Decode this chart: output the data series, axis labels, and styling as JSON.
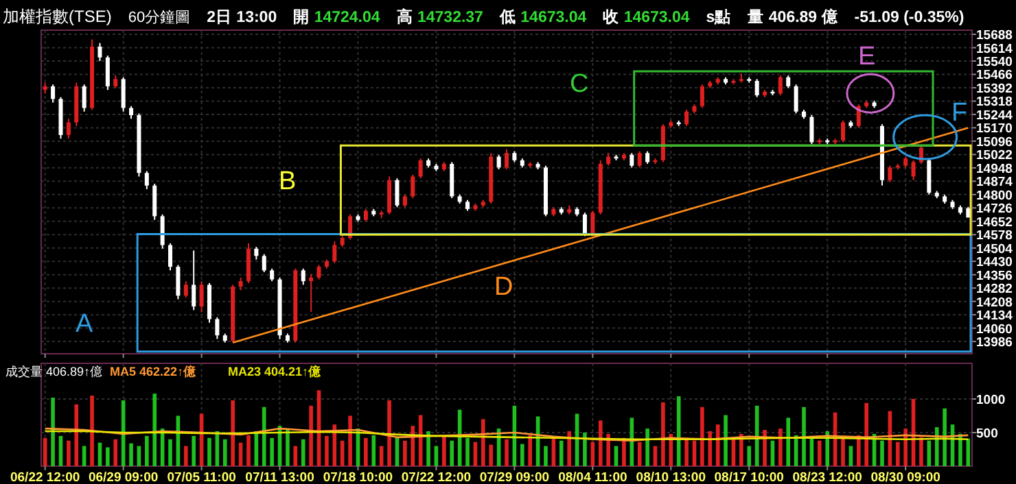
{
  "chart_data": [
    {
      "type": "candlestick",
      "title": "加權指數(TSE)",
      "subtitle": "60分鐘圖",
      "annotations": [
        "2日 13:00",
        "開 14724.04",
        "高 14732.37",
        "低 14673.04",
        "收 14673.04",
        "s點",
        "量 406.89 億",
        "-51.09 (-0.35%)",
        "A",
        "B",
        "C",
        "E",
        "F"
      ],
      "categories": [
        null,
        null,
        null,
        null,
        null,
        null,
        null,
        null,
        null,
        null,
        null,
        null,
        null,
        null,
        null,
        null,
        null,
        null,
        null,
        null,
        null,
        null,
        null,
        null,
        null,
        null,
        null,
        null,
        null,
        null,
        null,
        null,
        null,
        null,
        null,
        null,
        null,
        null,
        null,
        null,
        null,
        null,
        null,
        null,
        null,
        null,
        null,
        null,
        null,
        null,
        null,
        null,
        null,
        null,
        null,
        null,
        null,
        null,
        null,
        null,
        null,
        null,
        null,
        null,
        null,
        null,
        null,
        null,
        null,
        null,
        null,
        null,
        null,
        null,
        null,
        null,
        null,
        null,
        null,
        null,
        null,
        null,
        null,
        null,
        null,
        null,
        null,
        null,
        null,
        null,
        null,
        null,
        null,
        null,
        null,
        null,
        null,
        null,
        null,
        null,
        null,
        null,
        null,
        null,
        null,
        null,
        null,
        null,
        null,
        null,
        null,
        null,
        null,
        null,
        null,
        null,
        null,
        null,
        null
      ],
      "ohlc": [
        [
          15380,
          15420,
          15360,
          15400
        ],
        [
          15400,
          15410,
          15310,
          15330
        ],
        [
          15330,
          15340,
          15110,
          15130
        ],
        [
          15130,
          15220,
          15110,
          15200
        ],
        [
          15200,
          15420,
          15180,
          15400
        ],
        [
          15400,
          15410,
          15260,
          15280
        ],
        [
          15280,
          15660,
          15270,
          15620
        ],
        [
          15620,
          15640,
          15540,
          15560
        ],
        [
          15560,
          15570,
          15380,
          15400
        ],
        [
          15400,
          15460,
          15390,
          15440
        ],
        [
          15440,
          15450,
          15260,
          15280
        ],
        [
          15280,
          15290,
          15220,
          15240
        ],
        [
          15240,
          15250,
          14900,
          14920
        ],
        [
          14920,
          14930,
          14830,
          14850
        ],
        [
          14850,
          14860,
          14660,
          14680
        ],
        [
          14680,
          14690,
          14500,
          14520
        ],
        [
          14520,
          14530,
          14380,
          14400
        ],
        [
          14400,
          14410,
          14220,
          14240
        ],
        [
          14240,
          14320,
          14230,
          14300
        ],
        [
          14300,
          14490,
          14160,
          14180
        ],
        [
          14180,
          14320,
          14150,
          14300
        ],
        [
          14300,
          14310,
          14090,
          14110
        ],
        [
          14110,
          14120,
          14000,
          14020
        ],
        [
          14020,
          14030,
          13980,
          13990
        ],
        [
          13990,
          14300,
          13980,
          14290
        ],
        [
          14290,
          14340,
          14270,
          14320
        ],
        [
          14320,
          14530,
          14310,
          14500
        ],
        [
          14500,
          14510,
          14440,
          14460
        ],
        [
          14460,
          14470,
          14370,
          14380
        ],
        [
          14380,
          14390,
          14320,
          14330
        ],
        [
          14330,
          14340,
          14000,
          14020
        ],
        [
          14020,
          14030,
          13980,
          13990
        ],
        [
          13990,
          14390,
          13980,
          14380
        ],
        [
          14380,
          14390,
          14300,
          14320
        ],
        [
          14320,
          14360,
          14150,
          14340
        ],
        [
          14340,
          14410,
          14330,
          14400
        ],
        [
          14400,
          14440,
          14390,
          14430
        ],
        [
          14430,
          14540,
          14420,
          14520
        ],
        [
          14520,
          14570,
          14510,
          14560
        ],
        [
          14560,
          14690,
          14550,
          14680
        ],
        [
          14680,
          14690,
          14650,
          14660
        ],
        [
          14660,
          14720,
          14650,
          14710
        ],
        [
          14710,
          14720,
          14680,
          14690
        ],
        [
          14690,
          14710,
          14670,
          14700
        ],
        [
          14700,
          14900,
          14690,
          14880
        ],
        [
          14880,
          14890,
          14730,
          14740
        ],
        [
          14740,
          14800,
          14730,
          14790
        ],
        [
          14790,
          14910,
          14780,
          14900
        ],
        [
          14900,
          15000,
          14890,
          14990
        ],
        [
          14990,
          15000,
          14950,
          14960
        ],
        [
          14960,
          14970,
          14930,
          14940
        ],
        [
          14940,
          14980,
          14930,
          14970
        ],
        [
          14970,
          14980,
          14780,
          14790
        ],
        [
          14790,
          14800,
          14750,
          14760
        ],
        [
          14760,
          14770,
          14710,
          14720
        ],
        [
          14720,
          14750,
          14710,
          14740
        ],
        [
          14740,
          14770,
          14730,
          14760
        ],
        [
          14760,
          15030,
          14750,
          15010
        ],
        [
          15010,
          15020,
          14940,
          14950
        ],
        [
          14950,
          15050,
          14940,
          15030
        ],
        [
          15030,
          15040,
          14980,
          14990
        ],
        [
          14990,
          15000,
          14950,
          14960
        ],
        [
          14960,
          14980,
          14950,
          14970
        ],
        [
          14970,
          14980,
          14940,
          14950
        ],
        [
          14950,
          14960,
          14680,
          14690
        ],
        [
          14690,
          14730,
          14680,
          14720
        ],
        [
          14720,
          14730,
          14690,
          14700
        ],
        [
          14700,
          14740,
          14690,
          14720
        ],
        [
          14720,
          14730,
          14680,
          14690
        ],
        [
          14690,
          14700,
          14570,
          14580
        ],
        [
          14580,
          14710,
          14570,
          14700
        ],
        [
          14700,
          14990,
          14690,
          14970
        ],
        [
          14970,
          15030,
          14960,
          15010
        ],
        [
          15010,
          15020,
          14990,
          15000
        ],
        [
          15000,
          15030,
          14990,
          15020
        ],
        [
          15020,
          15030,
          14950,
          14960
        ],
        [
          14960,
          15040,
          14950,
          15030
        ],
        [
          15030,
          15040,
          14970,
          14980
        ],
        [
          14980,
          15000,
          14970,
          14990
        ],
        [
          14990,
          15190,
          14980,
          15180
        ],
        [
          15180,
          15210,
          15170,
          15200
        ],
        [
          15200,
          15210,
          15180,
          15190
        ],
        [
          15190,
          15270,
          15180,
          15260
        ],
        [
          15260,
          15300,
          15250,
          15290
        ],
        [
          15290,
          15410,
          15280,
          15400
        ],
        [
          15400,
          15430,
          15390,
          15420
        ],
        [
          15420,
          15450,
          15410,
          15440
        ],
        [
          15440,
          15450,
          15410,
          15420
        ],
        [
          15420,
          15440,
          15410,
          15430
        ],
        [
          15430,
          15470,
          15420,
          15440
        ],
        [
          15440,
          15450,
          15420,
          15430
        ],
        [
          15430,
          15440,
          15340,
          15350
        ],
        [
          15350,
          15380,
          15340,
          15370
        ],
        [
          15370,
          15380,
          15350,
          15360
        ],
        [
          15360,
          15460,
          15350,
          15450
        ],
        [
          15450,
          15460,
          15390,
          15400
        ],
        [
          15400,
          15410,
          15250,
          15260
        ],
        [
          15260,
          15270,
          15220,
          15230
        ],
        [
          15230,
          15240,
          15080,
          15090
        ],
        [
          15090,
          15110,
          15080,
          15100
        ],
        [
          15100,
          15110,
          15080,
          15090
        ],
        [
          15090,
          15110,
          15080,
          15100
        ],
        [
          15100,
          15210,
          15090,
          15200
        ],
        [
          15200,
          15210,
          15170,
          15180
        ],
        [
          15180,
          15300,
          15170,
          15290
        ],
        [
          15290,
          15320,
          15280,
          15310
        ],
        [
          15310,
          15320,
          15280,
          15290
        ],
        [
          15180,
          15190,
          14850,
          14880
        ],
        [
          14880,
          14960,
          14870,
          14950
        ],
        [
          14950,
          14970,
          14940,
          14960
        ],
        [
          14960,
          15010,
          14950,
          15000
        ],
        [
          14900,
          14990,
          14880,
          14980
        ],
        [
          14980,
          15070,
          14970,
          15060
        ],
        [
          14990,
          15000,
          14800,
          14810
        ],
        [
          14810,
          14820,
          14780,
          14790
        ],
        [
          14790,
          14800,
          14750,
          14760
        ],
        [
          14760,
          14770,
          14720,
          14730
        ],
        [
          14730,
          14740,
          14690,
          14700
        ],
        [
          14724,
          14732,
          14673,
          14673
        ]
      ],
      "series": [
        {
          "type": "line",
          "name": "D",
          "color": "#ff8c1a",
          "values": [
            null,
            null,
            null,
            null,
            null,
            null,
            null,
            null,
            null,
            null,
            null,
            null,
            null,
            null,
            null,
            null,
            null,
            null,
            null,
            null,
            null,
            null,
            null,
            null,
            13980,
            null,
            null,
            null,
            null,
            null,
            null,
            null,
            null,
            null,
            null,
            null,
            null,
            null,
            null,
            null,
            null,
            null,
            null,
            null,
            null,
            null,
            null,
            null,
            null,
            null,
            null,
            null,
            null,
            null,
            null,
            null,
            null,
            null,
            null,
            null,
            null,
            null,
            null,
            null,
            null,
            null,
            null,
            null,
            null,
            null,
            null,
            null,
            null,
            null,
            null,
            null,
            null,
            null,
            null,
            null,
            null,
            null,
            null,
            null,
            null,
            null,
            null,
            null,
            null,
            null,
            null,
            null,
            null,
            null,
            null,
            null,
            null,
            null,
            null,
            null,
            null,
            null,
            null,
            null,
            null,
            null,
            null,
            null,
            null,
            null,
            null,
            null,
            null,
            null,
            null,
            null,
            null,
            null,
            15170
          ]
        }
      ],
      "ylim": [
        13918,
        15711
      ],
      "yticks": [
        13986,
        14060,
        14134,
        14208,
        14282,
        14356,
        14430,
        14504,
        14578,
        14652,
        14726,
        14800,
        14874,
        14948,
        15022,
        15096,
        15170,
        15244,
        15318,
        15392,
        15466,
        15540,
        15614,
        15688
      ],
      "grid": true,
      "tick_labels": "y"
    },
    {
      "type": "bar",
      "title": "成交量 406.89↑億",
      "categories": [
        "06/22 12:00",
        null,
        null,
        null,
        null,
        null,
        null,
        null,
        null,
        null,
        "06/29 09:00",
        null,
        null,
        null,
        null,
        null,
        null,
        null,
        null,
        null,
        "07/05 11:00",
        null,
        null,
        null,
        null,
        null,
        null,
        null,
        null,
        null,
        "07/11 13:00",
        null,
        null,
        null,
        null,
        null,
        null,
        null,
        null,
        null,
        "07/18 10:00",
        null,
        null,
        null,
        null,
        null,
        null,
        null,
        null,
        null,
        "07/22 12:00",
        null,
        null,
        null,
        null,
        null,
        null,
        null,
        null,
        null,
        "07/29 09:00",
        null,
        null,
        null,
        null,
        null,
        null,
        null,
        null,
        null,
        "08/04 11:00",
        null,
        null,
        null,
        null,
        null,
        null,
        null,
        null,
        null,
        "08/10 13:00",
        null,
        null,
        null,
        null,
        null,
        null,
        null,
        null,
        null,
        "08/17 10:00",
        null,
        null,
        null,
        null,
        null,
        null,
        null,
        null,
        null,
        "08/23 12:00",
        null,
        null,
        null,
        null,
        null,
        null,
        null,
        null,
        null,
        "08/30 09:00",
        null,
        null,
        null,
        null,
        null,
        null,
        null,
        null
      ],
      "series": [
        {
          "type": "bar",
          "values": [
            420,
            1020,
            450,
            380,
            920,
            300,
            1050,
            350,
            280,
            400,
            980,
            340,
            300,
            450,
            1080,
            560,
            400,
            750,
            300,
            450,
            780,
            420,
            520,
            400,
            980,
            350,
            460,
            520,
            880,
            420,
            600,
            540,
            300,
            400,
            900,
            1130,
            450,
            620,
            380,
            750,
            560,
            420,
            460,
            300,
            980,
            420,
            380,
            600,
            760,
            520,
            300,
            450,
            380,
            840,
            420,
            360,
            700,
            320,
            560,
            400,
            900,
            330,
            460,
            740,
            300,
            420,
            380,
            520,
            780,
            500,
            360,
            680,
            480,
            300,
            420,
            720,
            360,
            560,
            300,
            950,
            480,
            1040,
            420,
            380,
            880,
            520,
            620,
            760,
            420,
            480,
            300,
            900,
            540,
            380,
            560,
            720,
            460,
            880,
            420,
            380,
            520,
            800,
            420,
            300,
            460,
            940,
            480,
            380,
            820,
            360,
            560,
            1000,
            430,
            380,
            580,
            860,
            620,
            480,
            410
          ],
          "colors": [
            "#e02020",
            "#20c020",
            "#20c020",
            "#e02020",
            "#e02020",
            "#20c020",
            "#e02020",
            "#20c020",
            "#20c020",
            "#e02020",
            "#20c020",
            "#20c020",
            "#20c020",
            "#20c020",
            "#20c020",
            "#20c020",
            "#20c020",
            "#20c020",
            "#e02020",
            "#20c020",
            "#e02020",
            "#20c020",
            "#20c020",
            "#20c020",
            "#e02020",
            "#e02020",
            "#e02020",
            "#20c020",
            "#20c020",
            "#20c020",
            "#20c020",
            "#20c020",
            "#e02020",
            "#20c020",
            "#e02020",
            "#e02020",
            "#e02020",
            "#e02020",
            "#e02020",
            "#e02020",
            "#20c020",
            "#e02020",
            "#20c020",
            "#e02020",
            "#e02020",
            "#20c020",
            "#e02020",
            "#e02020",
            "#e02020",
            "#20c020",
            "#20c020",
            "#e02020",
            "#20c020",
            "#20c020",
            "#20c020",
            "#e02020",
            "#e02020",
            "#e02020",
            "#20c020",
            "#e02020",
            "#20c020",
            "#20c020",
            "#e02020",
            "#20c020",
            "#20c020",
            "#e02020",
            "#20c020",
            "#e02020",
            "#20c020",
            "#20c020",
            "#e02020",
            "#e02020",
            "#e02020",
            "#20c020",
            "#e02020",
            "#20c020",
            "#e02020",
            "#20c020",
            "#e02020",
            "#e02020",
            "#e02020",
            "#20c020",
            "#e02020",
            "#e02020",
            "#e02020",
            "#e02020",
            "#e02020",
            "#20c020",
            "#e02020",
            "#e02020",
            "#20c020",
            "#20c020",
            "#e02020",
            "#20c020",
            "#e02020",
            "#20c020",
            "#20c020",
            "#20c020",
            "#20c020",
            "#e02020",
            "#20c020",
            "#e02020",
            "#e02020",
            "#20c020",
            "#e02020",
            "#e02020",
            "#20c020",
            "#20c020",
            "#e02020",
            "#e02020",
            "#e02020",
            "#e02020",
            "#e02020",
            "#20c020",
            "#20c020",
            "#20c020",
            "#20c020",
            "#20c020",
            "#20c020"
          ]
        },
        {
          "type": "line",
          "name": "MA5 462.22↑億",
          "color": "#ff9933",
          "values": [
            560,
            null,
            null,
            null,
            null,
            540,
            null,
            null,
            null,
            null,
            480,
            null,
            null,
            null,
            null,
            520,
            null,
            null,
            null,
            null,
            500,
            null,
            null,
            null,
            null,
            470,
            null,
            null,
            null,
            null,
            560,
            null,
            null,
            null,
            null,
            520,
            null,
            null,
            null,
            null,
            540,
            null,
            null,
            null,
            null,
            430,
            null,
            null,
            null,
            null,
            450,
            null,
            null,
            null,
            null,
            470,
            null,
            null,
            null,
            null,
            500,
            null,
            null,
            null,
            null,
            440,
            null,
            null,
            null,
            null,
            400,
            null,
            null,
            null,
            null,
            380,
            null,
            null,
            null,
            null,
            420,
            null,
            null,
            null,
            null,
            400,
            null,
            null,
            null,
            null,
            440,
            null,
            null,
            null,
            null,
            420,
            null,
            null,
            null,
            null,
            450,
            null,
            null,
            null,
            null,
            430,
            null,
            null,
            null,
            null,
            460,
            null,
            null,
            null,
            null,
            440,
            null,
            null,
            460
          ]
        },
        {
          "type": "line",
          "name": "MA23 404.21↑億",
          "color": "#e6e600",
          "values": [
            520,
            null,
            null,
            null,
            null,
            520,
            null,
            null,
            null,
            null,
            500,
            null,
            null,
            null,
            null,
            500,
            null,
            null,
            null,
            null,
            490,
            null,
            null,
            null,
            null,
            490,
            null,
            null,
            null,
            null,
            500,
            null,
            null,
            null,
            null,
            510,
            null,
            null,
            null,
            null,
            500,
            null,
            null,
            null,
            null,
            470,
            null,
            null,
            null,
            null,
            450,
            null,
            null,
            null,
            null,
            440,
            null,
            null,
            null,
            null,
            430,
            null,
            null,
            null,
            null,
            420,
            null,
            null,
            null,
            null,
            410,
            null,
            null,
            null,
            null,
            400,
            null,
            null,
            null,
            null,
            400,
            null,
            null,
            null,
            null,
            400,
            null,
            null,
            null,
            null,
            410,
            null,
            null,
            null,
            null,
            420,
            null,
            null,
            null,
            null,
            420,
            null,
            null,
            null,
            null,
            410,
            null,
            null,
            null,
            null,
            400,
            null,
            null,
            null,
            null,
            410,
            null,
            null,
            400
          ]
        }
      ],
      "ylim": [
        0,
        1530
      ],
      "yticks": [
        500,
        1000
      ],
      "grid": true
    }
  ]
}
